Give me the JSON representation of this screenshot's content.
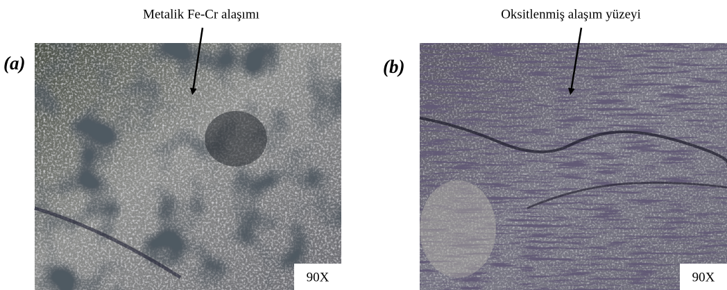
{
  "panels": [
    {
      "label": "(a)",
      "caption": "Metalik Fe-Cr alaşımı",
      "magnification": "90X"
    },
    {
      "label": "(b)",
      "caption": "Oksitlenmiş alaşım yüzeyi",
      "magnification": "90X"
    }
  ]
}
